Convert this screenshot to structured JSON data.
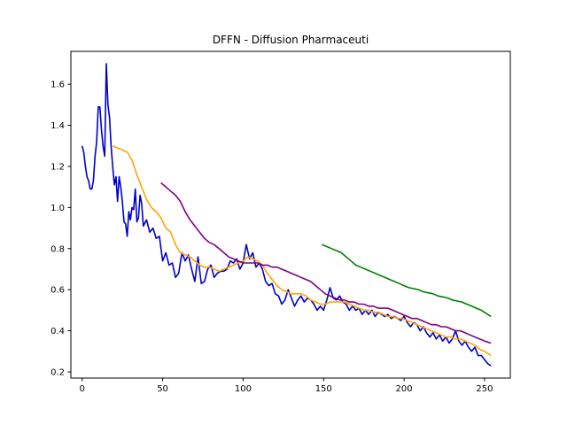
{
  "chart_data": {
    "type": "line",
    "title": "DFFN - Diffusion Pharmaceuti",
    "xlabel": "",
    "ylabel": "",
    "xlim": [
      -7,
      266
    ],
    "ylim": [
      0.17,
      1.76
    ],
    "xticks": [
      0,
      50,
      100,
      150,
      200,
      250
    ],
    "yticks": [
      0.2,
      0.4,
      0.6,
      0.8,
      1.0,
      1.2,
      1.4,
      1.6
    ],
    "grid": false,
    "legend": "none",
    "series": [
      {
        "color": "#0000cc",
        "x": [
          0,
          1,
          2,
          3,
          4,
          5,
          6,
          7,
          8,
          9,
          10,
          11,
          12,
          13,
          14,
          15,
          16,
          17,
          18,
          19,
          20,
          21,
          22,
          23,
          24,
          25,
          26,
          27,
          28,
          29,
          30,
          31,
          32,
          33,
          34,
          35,
          36,
          37,
          38,
          40,
          42,
          44,
          46,
          48,
          50,
          52,
          54,
          56,
          58,
          60,
          62,
          64,
          66,
          68,
          70,
          72,
          74,
          76,
          78,
          80,
          82,
          84,
          86,
          88,
          90,
          92,
          94,
          96,
          98,
          100,
          102,
          104,
          106,
          108,
          110,
          112,
          114,
          116,
          118,
          120,
          122,
          124,
          126,
          128,
          130,
          132,
          134,
          136,
          138,
          140,
          142,
          144,
          146,
          148,
          150,
          152,
          154,
          156,
          158,
          160,
          162,
          164,
          166,
          168,
          170,
          172,
          174,
          176,
          178,
          180,
          182,
          184,
          186,
          188,
          190,
          192,
          194,
          196,
          198,
          200,
          202,
          204,
          206,
          208,
          210,
          212,
          214,
          216,
          218,
          220,
          222,
          224,
          226,
          228,
          230,
          232,
          234,
          236,
          238,
          240,
          242,
          244,
          246,
          248,
          250,
          252,
          254
        ],
        "y": [
          1.3,
          1.27,
          1.2,
          1.15,
          1.13,
          1.09,
          1.09,
          1.13,
          1.25,
          1.32,
          1.49,
          1.49,
          1.38,
          1.3,
          1.25,
          1.7,
          1.5,
          1.44,
          1.3,
          1.2,
          1.11,
          1.15,
          1.03,
          1.15,
          1.1,
          1.03,
          0.93,
          0.92,
          0.86,
          0.98,
          0.94,
          1.0,
          0.99,
          1.09,
          0.93,
          0.95,
          1.06,
          1.02,
          0.91,
          0.94,
          0.88,
          0.9,
          0.85,
          0.86,
          0.74,
          0.78,
          0.72,
          0.73,
          0.66,
          0.68,
          0.78,
          0.74,
          0.77,
          0.7,
          0.64,
          0.76,
          0.63,
          0.64,
          0.7,
          0.72,
          0.66,
          0.68,
          0.69,
          0.69,
          0.7,
          0.74,
          0.73,
          0.75,
          0.7,
          0.73,
          0.82,
          0.75,
          0.78,
          0.71,
          0.73,
          0.7,
          0.64,
          0.62,
          0.63,
          0.58,
          0.57,
          0.53,
          0.55,
          0.6,
          0.56,
          0.52,
          0.55,
          0.57,
          0.54,
          0.56,
          0.55,
          0.53,
          0.5,
          0.52,
          0.5,
          0.55,
          0.61,
          0.56,
          0.55,
          0.57,
          0.54,
          0.53,
          0.5,
          0.52,
          0.5,
          0.51,
          0.48,
          0.5,
          0.48,
          0.5,
          0.47,
          0.49,
          0.48,
          0.47,
          0.48,
          0.46,
          0.47,
          0.46,
          0.45,
          0.47,
          0.44,
          0.42,
          0.44,
          0.43,
          0.4,
          0.42,
          0.39,
          0.37,
          0.39,
          0.36,
          0.38,
          0.35,
          0.37,
          0.34,
          0.36,
          0.4,
          0.35,
          0.33,
          0.35,
          0.32,
          0.3,
          0.32,
          0.28,
          0.28,
          0.26,
          0.24,
          0.23
        ]
      },
      {
        "color": "#ffa500",
        "x": [
          19,
          22,
          25,
          28,
          31,
          34,
          37,
          40,
          43,
          46,
          49,
          52,
          55,
          58,
          61,
          64,
          67,
          70,
          73,
          76,
          79,
          82,
          85,
          88,
          91,
          94,
          97,
          100,
          103,
          106,
          109,
          112,
          115,
          118,
          121,
          124,
          127,
          130,
          133,
          136,
          139,
          142,
          145,
          148,
          151,
          154,
          157,
          160,
          163,
          166,
          169,
          172,
          175,
          178,
          181,
          184,
          187,
          190,
          193,
          196,
          199,
          202,
          205,
          208,
          211,
          214,
          217,
          220,
          223,
          226,
          229,
          232,
          235,
          238,
          241,
          244,
          247,
          250,
          254
        ],
        "y": [
          1.3,
          1.29,
          1.28,
          1.27,
          1.23,
          1.16,
          1.1,
          1.04,
          1.0,
          0.98,
          0.95,
          0.9,
          0.88,
          0.82,
          0.78,
          0.77,
          0.76,
          0.74,
          0.72,
          0.71,
          0.71,
          0.7,
          0.69,
          0.7,
          0.71,
          0.72,
          0.73,
          0.74,
          0.76,
          0.75,
          0.74,
          0.72,
          0.68,
          0.65,
          0.62,
          0.6,
          0.59,
          0.58,
          0.58,
          0.58,
          0.57,
          0.55,
          0.54,
          0.53,
          0.53,
          0.54,
          0.54,
          0.54,
          0.54,
          0.53,
          0.52,
          0.51,
          0.5,
          0.5,
          0.49,
          0.49,
          0.48,
          0.47,
          0.47,
          0.46,
          0.46,
          0.45,
          0.44,
          0.43,
          0.42,
          0.41,
          0.4,
          0.39,
          0.38,
          0.37,
          0.37,
          0.36,
          0.36,
          0.35,
          0.34,
          0.33,
          0.31,
          0.3,
          0.28
        ]
      },
      {
        "color": "#800080",
        "x": [
          49,
          52,
          55,
          58,
          61,
          64,
          67,
          70,
          73,
          76,
          79,
          82,
          85,
          88,
          91,
          94,
          97,
          100,
          103,
          106,
          109,
          112,
          115,
          118,
          121,
          124,
          127,
          130,
          133,
          136,
          139,
          142,
          145,
          148,
          151,
          154,
          157,
          160,
          163,
          166,
          169,
          172,
          175,
          178,
          181,
          184,
          187,
          190,
          193,
          196,
          199,
          202,
          205,
          208,
          211,
          214,
          217,
          220,
          223,
          226,
          229,
          232,
          235,
          238,
          241,
          244,
          247,
          250,
          254
        ],
        "y": [
          1.12,
          1.1,
          1.08,
          1.06,
          1.03,
          0.98,
          0.94,
          0.91,
          0.88,
          0.85,
          0.83,
          0.82,
          0.8,
          0.78,
          0.76,
          0.75,
          0.74,
          0.73,
          0.73,
          0.73,
          0.73,
          0.72,
          0.72,
          0.71,
          0.71,
          0.7,
          0.69,
          0.68,
          0.67,
          0.66,
          0.65,
          0.64,
          0.62,
          0.6,
          0.58,
          0.57,
          0.56,
          0.55,
          0.55,
          0.54,
          0.54,
          0.53,
          0.53,
          0.52,
          0.52,
          0.51,
          0.51,
          0.51,
          0.5,
          0.49,
          0.48,
          0.47,
          0.46,
          0.46,
          0.45,
          0.44,
          0.43,
          0.43,
          0.42,
          0.42,
          0.41,
          0.4,
          0.4,
          0.39,
          0.38,
          0.37,
          0.36,
          0.35,
          0.34
        ]
      },
      {
        "color": "#008000",
        "x": [
          149,
          152,
          155,
          158,
          161,
          164,
          167,
          170,
          173,
          176,
          179,
          182,
          185,
          188,
          191,
          194,
          197,
          200,
          203,
          206,
          209,
          212,
          215,
          218,
          221,
          224,
          227,
          230,
          233,
          236,
          239,
          242,
          245,
          248,
          251,
          254
        ],
        "y": [
          0.82,
          0.81,
          0.8,
          0.79,
          0.78,
          0.76,
          0.74,
          0.72,
          0.71,
          0.7,
          0.69,
          0.68,
          0.67,
          0.66,
          0.65,
          0.64,
          0.63,
          0.62,
          0.61,
          0.605,
          0.6,
          0.59,
          0.585,
          0.58,
          0.57,
          0.565,
          0.56,
          0.55,
          0.545,
          0.54,
          0.53,
          0.52,
          0.51,
          0.5,
          0.485,
          0.47
        ]
      }
    ]
  }
}
